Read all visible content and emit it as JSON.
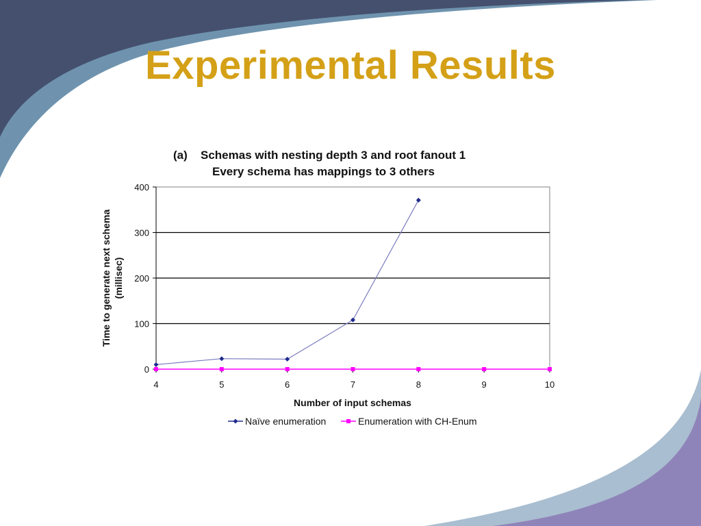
{
  "slide": {
    "title": "Experimental Results",
    "title_color": "#D4A017",
    "background_colors": {
      "dark_navy": "#44506E",
      "steel_blue": "#6F93AE",
      "lavender": "#8F84B9",
      "light_blue": "#A9BED0"
    }
  },
  "chart_data": {
    "type": "line",
    "title_prefix": "(a)",
    "title_line1": "Schemas with nesting depth 3 and root fanout 1",
    "title_line2": "Every schema has mappings to 3 others",
    "xlabel": "Number of input schemas",
    "ylabel_line1": "Time to generate next schema",
    "ylabel_line2": "(millisec)",
    "xlim": [
      4,
      10
    ],
    "ylim": [
      0,
      400
    ],
    "x_ticks": [
      "4",
      "5",
      "6",
      "7",
      "8",
      "9",
      "10"
    ],
    "y_ticks": [
      "0",
      "100",
      "200",
      "300",
      "400"
    ],
    "grid": "horizontal",
    "legend_position": "bottom",
    "series": [
      {
        "name": "Naïve enumeration",
        "color": "#1F2A8C",
        "line_color": "#7C7CC0",
        "marker": "diamond",
        "x": [
          4,
          5,
          6,
          7,
          8
        ],
        "y": [
          10,
          23,
          22,
          108,
          371
        ]
      },
      {
        "name": "Enumeration with CH-Enum",
        "color": "#FF00FF",
        "line_color": "#FF00FF",
        "marker": "square",
        "x": [
          4,
          5,
          6,
          7,
          8,
          9,
          10
        ],
        "y": [
          0,
          0,
          0,
          0,
          0,
          0,
          0
        ]
      }
    ]
  }
}
